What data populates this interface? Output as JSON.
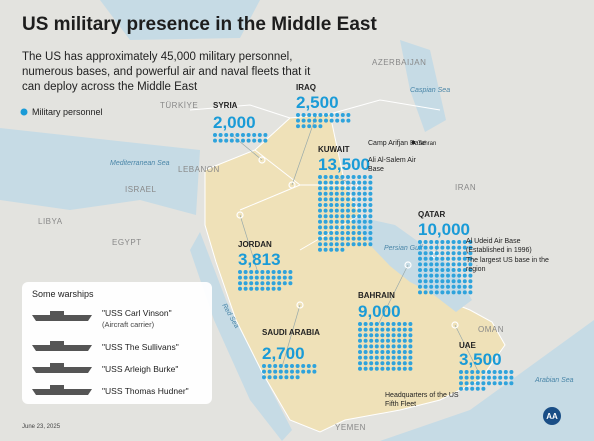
{
  "header": {
    "title": "US military presence in the Middle East",
    "subtitle": "The US has approximately 45,000 military personnel, numerous bases, and powerful air and naval fleets that it can deploy across the Middle East"
  },
  "legend": "Military personnel",
  "map_labels": [
    "TÜRKİYE",
    "AZERBAIJAN",
    "Caspian Sea",
    "Tehran",
    "IRAN",
    "LEBANON",
    "ISRAEL",
    "Mediterranean Sea",
    "LIBYA",
    "EGYPT",
    "Persian Gulf",
    "Red Sea",
    "OMAN",
    "Arabian Sea",
    "YEMEN"
  ],
  "deployments": [
    {
      "country": "SYRIA",
      "personnel": {
        "value": 2000,
        "label": "2,000"
      }
    },
    {
      "country": "IRAQ",
      "personnel": {
        "value": 2500,
        "label": "2,500"
      }
    },
    {
      "country": "KUWAIT",
      "personnel": {
        "value": 13500,
        "label": "13,500"
      },
      "notes": [
        "Camp Arifjan Base",
        "Ali Al-Salem Air Base"
      ]
    },
    {
      "country": "JORDAN",
      "personnel": {
        "value": 3813,
        "label": "3,813"
      }
    },
    {
      "country": "SAUDI ARABIA",
      "personnel": {
        "value": 2700,
        "label": "2,700"
      }
    },
    {
      "country": "BAHRAIN",
      "personnel": {
        "value": 9000,
        "label": "9,000"
      },
      "notes": [
        "Headquarters of the US Fifth Fleet"
      ]
    },
    {
      "country": "QATAR",
      "personnel": {
        "value": 10000,
        "label": "10,000"
      },
      "notes": [
        "Al Udeid Air Base (Established in 1996)",
        "The largest US base in the region"
      ]
    },
    {
      "country": "UAE",
      "personnel": {
        "value": 3500,
        "label": "3,500"
      }
    }
  ],
  "warships": {
    "title": "Some warships",
    "ships": [
      {
        "name": "\"USS Carl Vinson\"",
        "type": "(Aircraft carrier)"
      },
      {
        "name": "\"USS The Sullivans\""
      },
      {
        "name": "\"USS Arleigh Burke\""
      },
      {
        "name": "\"USS Thomas Hudner\""
      }
    ]
  },
  "footer": {
    "date": "June 23, 2025",
    "logo": "AA"
  }
}
